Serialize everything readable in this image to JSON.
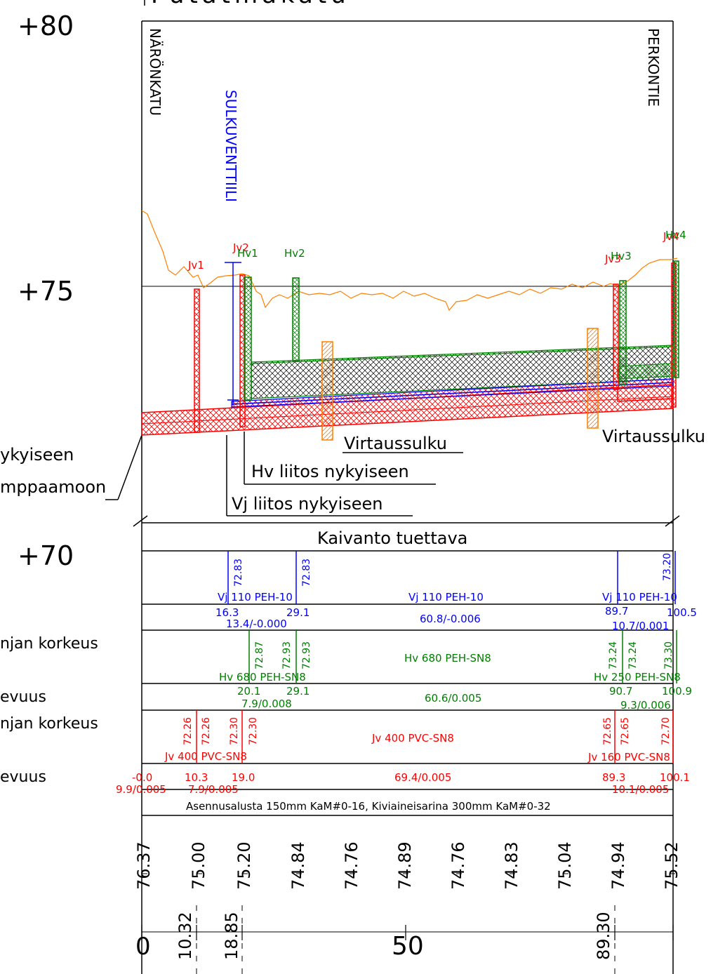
{
  "title_fragment": "Putatmakatu",
  "elevations": {
    "e80": "+80",
    "e75": "+75",
    "e70": "+70"
  },
  "street_left": "NÄRÖNKATU",
  "street_right": "PERKONTIE",
  "valve_label": "SULKUVENTTIILI",
  "well_labels": {
    "jv1": "Jv1",
    "jv2": "Jv2",
    "hv1": "Hv1",
    "hv2": "Hv2",
    "jv3": "Jv3",
    "hv3": "Hv3",
    "jv4": "Jv4",
    "hv4": "Hv4"
  },
  "flow_barrier_1": "Virtaussulku",
  "flow_barrier_2": "Virtaussulku",
  "left_notes": [
    "ykyiseen",
    "mppaamoon"
  ],
  "hv_connection": "Hv liitos nykyiseen",
  "vj_connection": "Vj liitos nykyiseen",
  "excavation": "Kaivanto tuettava",
  "left_row_labels": [
    "njan korkeus",
    "evuus",
    "njan korkeus",
    "evuus"
  ],
  "vj_band": {
    "top_levels": [
      "72.83",
      "72.83",
      "73.20"
    ],
    "pipe_left": "Vj 110 PEH-10",
    "pipe_mid": "Vj 110 PEH-10",
    "pipe_right": "Vj 110 PEH-10",
    "stations": [
      "16.3",
      "29.1",
      "89.7",
      "100.5"
    ],
    "slope_left": "13.4/-0.000",
    "slope_mid": "60.8/-0.006",
    "slope_right": "10.7/0.001"
  },
  "hv_band": {
    "levels": [
      "72.87",
      "72.93",
      "72.93",
      "73.24",
      "73.24",
      "73.30"
    ],
    "pipe_left": "Hv 680 PEH-SN8",
    "pipe_mid": "Hv 680 PEH-SN8",
    "pipe_right": "Hv 250 PEH-SN8",
    "stations": [
      "20.1",
      "29.1",
      "90.7",
      "100.9"
    ],
    "slope_left": "7.9/0.008",
    "slope_mid": "60.6/0.005",
    "slope_right": "9.3/0.006"
  },
  "jv_band": {
    "levels": [
      "72.26",
      "72.26",
      "72.30",
      "72.30",
      "72.65",
      "72.65",
      "72.70"
    ],
    "pipe_left": "Jv 400 PVC-SN8",
    "pipe_mid": "Jv 400 PVC-SN8",
    "pipe_right": "Jv 160 PVC-SN8",
    "stations": [
      "-0.0",
      "10.3",
      "19.0",
      "89.3",
      "100.1"
    ],
    "slope_a": "9.9/0.005",
    "slope_b": "7.9/0.005",
    "slope_mid": "69.4/0.005",
    "slope_right": "10.1/0.005"
  },
  "bedding": "Asennusalusta 150mm KaM#0-16, Kiviaineisarina 300mm KaM#0-32",
  "ground_levels": [
    "76.37",
    "75.00",
    "75.20",
    "74.84",
    "74.76",
    "74.89",
    "74.76",
    "74.83",
    "75.04",
    "74.94",
    "75.52"
  ],
  "chainage": [
    "0",
    "10.32",
    "18.85",
    "50",
    "89.30"
  ],
  "colors": {
    "water": "#0000ff",
    "storm": "#008000",
    "sewer": "#ff0000",
    "ground": "#ff8000",
    "frame": "#000000"
  }
}
